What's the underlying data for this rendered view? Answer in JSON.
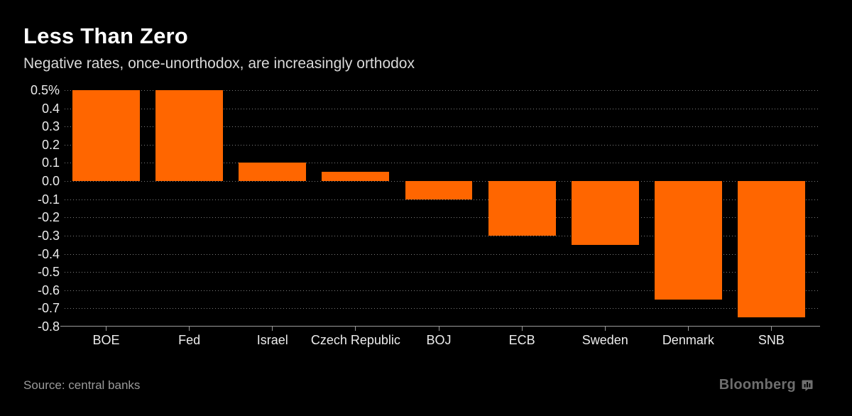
{
  "header": {
    "title": "Less Than Zero",
    "subtitle": "Negative rates, once-unorthodox, are increasingly orthodox"
  },
  "chart_data": {
    "type": "bar",
    "title": "Less Than Zero",
    "subtitle": "Negative rates, once-unorthodox, are increasingly orthodox",
    "categories": [
      "BOE",
      "Fed",
      "Israel",
      "Czech Republic",
      "BOJ",
      "ECB",
      "Sweden",
      "Denmark",
      "SNB"
    ],
    "values": [
      0.5,
      0.5,
      0.1,
      0.05,
      -0.1,
      -0.3,
      -0.35,
      -0.65,
      -0.75
    ],
    "xlabel": "",
    "ylabel": "",
    "ylim": [
      -0.8,
      0.5
    ],
    "ytick_step": 0.1,
    "ytick_top_label": "0.5%",
    "grid": "dotted-horizontal",
    "legend": "none",
    "bar_color": "#FF6600"
  },
  "footer": {
    "source": "Source: central banks",
    "brand": "Bloomberg"
  },
  "colors": {
    "background": "#000000",
    "title": "#FFFFFF",
    "subtitle": "#D9D9D9",
    "axis_label": "#ECECEC",
    "gridline": "#7D7D7D",
    "axis_line": "#9B9B9B",
    "source_text": "#9A9A9A",
    "brand_text": "#6E6E6E",
    "bar": "#FF6600"
  }
}
